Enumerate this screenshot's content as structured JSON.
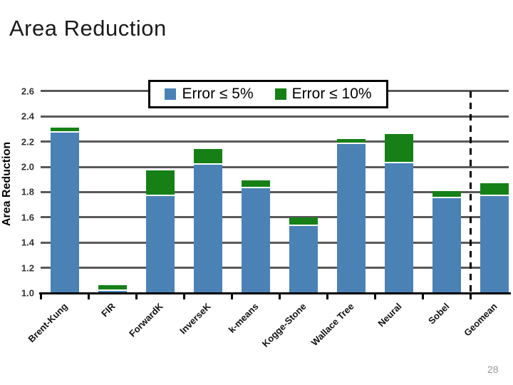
{
  "slide": {
    "title": "Area Reduction",
    "page_number": "28"
  },
  "legend": {
    "items": [
      {
        "label": "Error ≤ 5%",
        "color": "#4b82b6"
      },
      {
        "label": "Error ≤ 10%",
        "color": "#168016"
      }
    ]
  },
  "chart_data": {
    "type": "bar",
    "stacked": true,
    "title": "Area Reduction",
    "xlabel": "",
    "ylabel": "Area Reduction",
    "ylim": [
      1.0,
      2.6
    ],
    "ytick_step": 0.2,
    "yticks": [
      1.0,
      1.2,
      1.4,
      1.6,
      1.8,
      2.0,
      2.2,
      2.4,
      2.6
    ],
    "grid": true,
    "gridline_color": "#595959",
    "legend_position": "top",
    "categories": [
      "Brent-Kung",
      "FIR",
      "ForwardK",
      "InverseK",
      "k-means",
      "Kogge-Stone",
      "Wallace Tree",
      "Neural",
      "Sobel",
      "Geomean"
    ],
    "series": [
      {
        "name": "Error ≤ 5%",
        "color": "#4b82b6",
        "values": [
          2.28,
          1.03,
          1.78,
          2.03,
          1.84,
          1.54,
          2.19,
          2.04,
          1.76,
          1.78
        ]
      },
      {
        "name": "Error ≤ 10%",
        "color": "#168016",
        "segment_values": [
          0.03,
          0.03,
          0.19,
          0.11,
          0.05,
          0.06,
          0.03,
          0.22,
          0.05,
          0.09
        ],
        "stacked_totals": [
          2.31,
          1.06,
          1.97,
          2.14,
          1.89,
          1.6,
          2.22,
          2.26,
          1.81,
          1.87
        ]
      }
    ],
    "annotations": [
      {
        "type": "dashed-vertical-line",
        "between_categories": [
          "Sobel",
          "Geomean"
        ],
        "color": "#000000"
      }
    ]
  }
}
